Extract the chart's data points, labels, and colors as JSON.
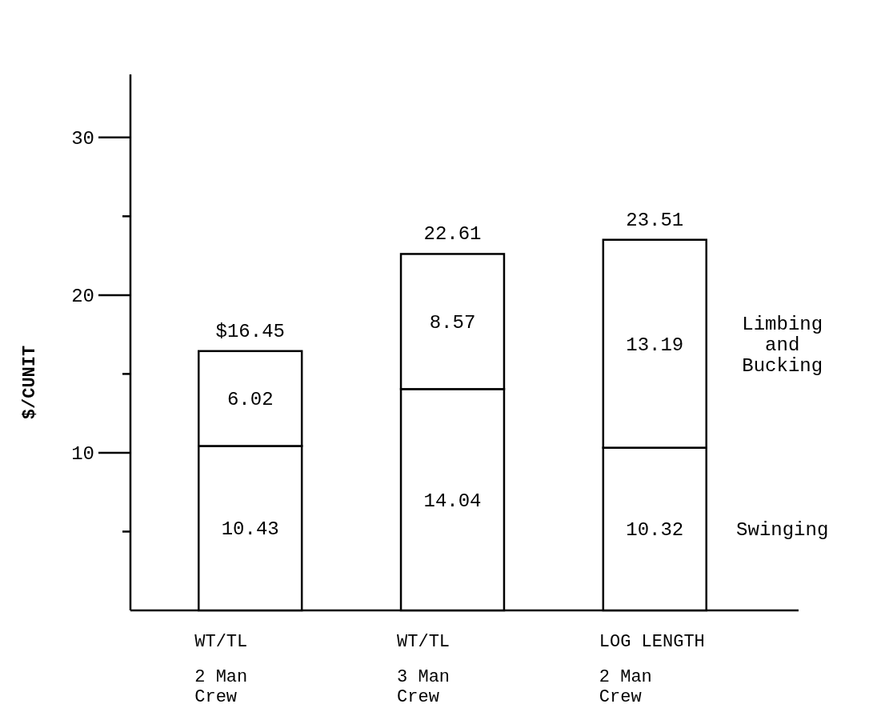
{
  "chart_data": {
    "type": "bar",
    "stacked": true,
    "ylabel": "$/CUNIT",
    "categories": [
      "WT/TL\n2 Man\nCrew",
      "WT/TL\n3 Man\nCrew",
      "LOG LENGTH\n2 Man\nCrew"
    ],
    "series": [
      {
        "name": "Swinging",
        "color": "#ffffff",
        "values": [
          10.43,
          14.04,
          10.32
        ]
      },
      {
        "name": "Limbing and Bucking",
        "color": "#ffffff",
        "values": [
          6.02,
          8.57,
          13.19
        ]
      }
    ],
    "totals": [
      "$16.45",
      "22.61",
      "23.51"
    ],
    "data_labels": true,
    "ylim": [
      0,
      34
    ],
    "yticks": [
      {
        "value": 5,
        "label": null
      },
      10,
      {
        "value": 15,
        "label": null
      },
      20,
      {
        "value": 25,
        "label": null
      },
      30
    ]
  }
}
